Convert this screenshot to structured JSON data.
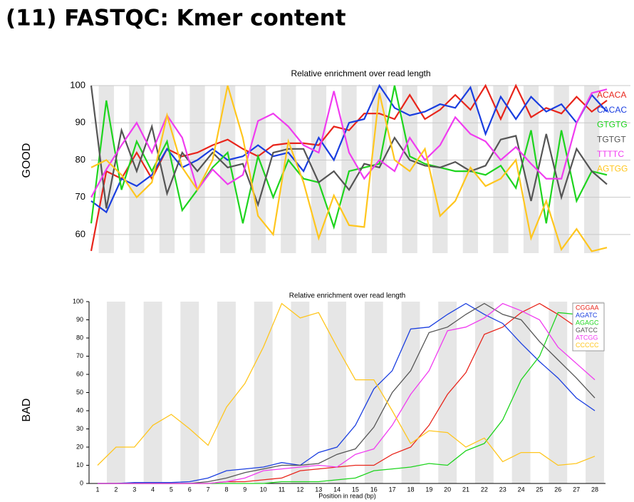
{
  "title": "(11) FASTQC: Kmer content",
  "chart_data": [
    {
      "type": "line",
      "panel_label": "GOOD",
      "title": "Relative enrichment over read length",
      "categories": [
        null,
        null,
        null,
        null,
        null,
        null,
        null,
        null,
        null,
        null,
        null,
        null,
        null,
        null,
        null,
        null,
        null,
        null,
        null,
        null,
        null,
        null,
        null,
        null,
        null,
        null,
        null,
        null,
        null,
        null,
        null,
        null,
        null,
        null,
        null
      ],
      "ylim": [
        55,
        100
      ],
      "yticks": [
        60,
        70,
        80,
        90,
        100
      ],
      "grid": true,
      "series": [
        {
          "name": "ACACA",
          "color": "#e8251b",
          "values": [
            55.6,
            77,
            75,
            82,
            75,
            83,
            81,
            82,
            84,
            85.5,
            83,
            81,
            84,
            84.5,
            84.5,
            84,
            89,
            88,
            92.5,
            92.5,
            91,
            97.5,
            91,
            93.5,
            97.5,
            93.5,
            100,
            91,
            100,
            91.5,
            94,
            92.5,
            97,
            93,
            96
          ]
        },
        {
          "name": "CACAC",
          "color": "#1a3ee0",
          "values": [
            69,
            66,
            75,
            73,
            76,
            83,
            78,
            80,
            83,
            80,
            81,
            84,
            81,
            82,
            77,
            86,
            80,
            90,
            91,
            100,
            94,
            92,
            93,
            95,
            94,
            99.5,
            87,
            97,
            91,
            97,
            93,
            95,
            90,
            97.5,
            93
          ]
        },
        {
          "name": "GTGTG",
          "color": "#1ed41e",
          "values": [
            63,
            96,
            72,
            85,
            77,
            85,
            66.5,
            72,
            78,
            82,
            63,
            81,
            70,
            80,
            75,
            74,
            62,
            77,
            78,
            79,
            100,
            81,
            79,
            78,
            77,
            77,
            76,
            78.5,
            72.5,
            88,
            63,
            88,
            69,
            77,
            76
          ]
        },
        {
          "name": "TGTGT",
          "color": "#555555",
          "values": [
            100,
            67,
            88,
            77,
            89,
            71,
            82,
            77,
            82,
            78,
            79,
            68,
            82,
            83,
            83,
            74,
            77,
            72,
            79,
            78,
            86,
            80,
            78.5,
            78,
            79.5,
            77,
            78.5,
            85.5,
            86.5,
            69,
            87,
            70,
            83,
            77,
            73.5
          ]
        },
        {
          "name": "TTTTC",
          "color": "#f03cf0",
          "values": [
            70,
            77.5,
            84,
            90,
            82,
            92,
            86,
            72,
            77.5,
            73.5,
            76,
            90.5,
            92.5,
            89,
            84,
            82,
            98.5,
            82,
            75,
            80,
            77,
            86,
            80,
            84,
            91.5,
            87,
            85,
            80,
            83.5,
            79,
            75,
            75,
            90,
            98,
            99
          ]
        },
        {
          "name": "AGTGG",
          "color": "#ffc61e",
          "values": [
            78,
            80,
            76,
            70,
            74,
            92,
            78,
            72,
            80,
            100,
            86,
            65,
            60,
            85,
            74,
            59,
            70.5,
            62.5,
            62,
            98,
            80,
            77,
            83,
            65,
            69,
            78,
            73,
            75,
            80,
            59,
            69,
            56,
            61.5,
            55.5,
            56.5
          ]
        }
      ]
    },
    {
      "type": "line",
      "panel_label": "BAD",
      "title": "Relative enrichment over read length",
      "x_label": "Position in read (bp)",
      "categories": [
        "1",
        "2",
        "3",
        "4",
        "5",
        "6",
        "7",
        "8",
        "9",
        "10",
        "11",
        "12",
        "13",
        "14",
        "15",
        "16",
        "17",
        "18",
        "19",
        "20",
        "21",
        "22",
        "23",
        "24",
        "25",
        "26",
        "27",
        "28"
      ],
      "ylim": [
        0,
        100
      ],
      "yticks": [
        0,
        10,
        20,
        30,
        40,
        50,
        60,
        70,
        80,
        90,
        100
      ],
      "grid": false,
      "series": [
        {
          "name": "CGGAA",
          "color": "#e8251b",
          "values": [
            0,
            0,
            0,
            0,
            0,
            0,
            0,
            1,
            1,
            2,
            3,
            7,
            8,
            9,
            10,
            10,
            16,
            20,
            32,
            49,
            61,
            82,
            86,
            94,
            99,
            93,
            86,
            74
          ]
        },
        {
          "name": "AGATC",
          "color": "#1a3ee0",
          "values": [
            0,
            0,
            0.5,
            0.5,
            0.5,
            1,
            3,
            7,
            8,
            9,
            11.5,
            10,
            17,
            20,
            32,
            52,
            62,
            85,
            86,
            93,
            99,
            93,
            88,
            77,
            67,
            58,
            47,
            40
          ]
        },
        {
          "name": "AGAGC",
          "color": "#1ed41e",
          "values": [
            0,
            0,
            0,
            0,
            0,
            0,
            0,
            0,
            0,
            0,
            1,
            1,
            1,
            2,
            3,
            7,
            8,
            9,
            11,
            10,
            18,
            22,
            35,
            57,
            70,
            94,
            93,
            80
          ]
        },
        {
          "name": "GATCC",
          "color": "#555555",
          "values": [
            0,
            0,
            0,
            0,
            0,
            0,
            1,
            3,
            6,
            8,
            10,
            10,
            11,
            16,
            19,
            31,
            50,
            62,
            83,
            86,
            93,
            99,
            93,
            90,
            78,
            68,
            58,
            47
          ]
        },
        {
          "name": "ATCGG",
          "color": "#f03cf0",
          "values": [
            0,
            0,
            0,
            0,
            0,
            0,
            0,
            1,
            3,
            7,
            8,
            9,
            10,
            9,
            16,
            19,
            32,
            49,
            62,
            84,
            86,
            91,
            99,
            95,
            90,
            75,
            66,
            57
          ]
        },
        {
          "name": "CCCCC",
          "color": "#ffc61e",
          "values": [
            10,
            20,
            20,
            32,
            38,
            30,
            21,
            42,
            55,
            75,
            99,
            91,
            94,
            75,
            57,
            57,
            40,
            22,
            29,
            28,
            20,
            25,
            12,
            17,
            17,
            10,
            11,
            15
          ]
        }
      ]
    }
  ]
}
